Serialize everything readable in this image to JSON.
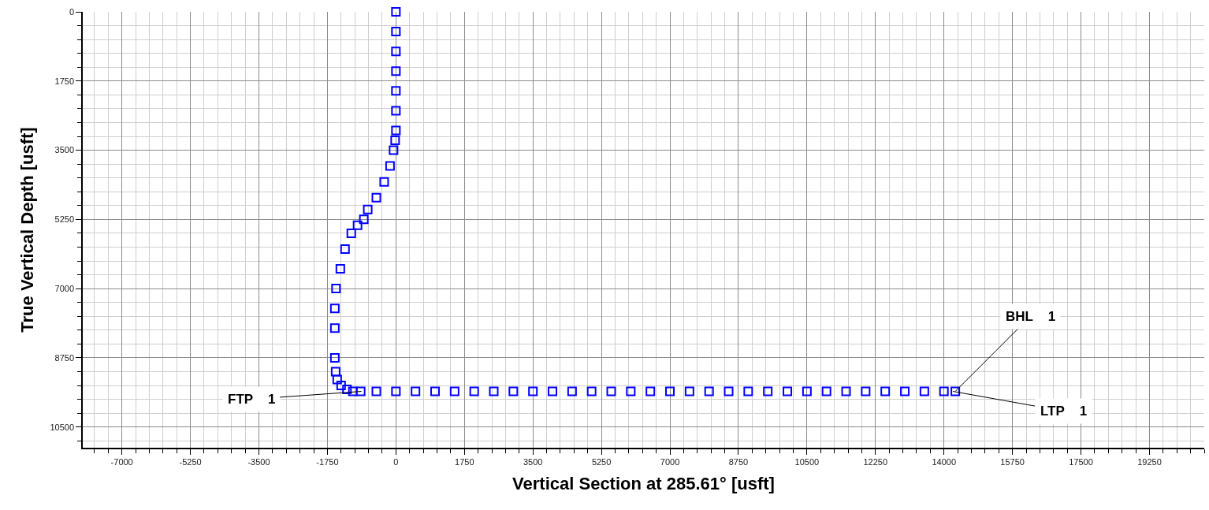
{
  "chart_data": {
    "type": "scatter",
    "xlabel": "Vertical Section at 285.61° [usft]",
    "ylabel": "True Vertical Depth [usft]",
    "x": [
      0,
      0,
      0,
      0,
      0,
      0,
      0,
      -20,
      -60,
      -150,
      -300,
      -500,
      -720,
      -820,
      -980,
      -1140,
      -1300,
      -1420,
      -1530,
      -1560,
      -1560,
      -1560,
      -1540,
      -1500,
      -1400,
      -1250,
      -1100,
      -900,
      -500,
      0,
      500,
      1000,
      1500,
      2000,
      2500,
      3000,
      3500,
      4000,
      4500,
      5000,
      5500,
      6000,
      6500,
      7000,
      7500,
      8000,
      8500,
      9000,
      9500,
      10000,
      10500,
      11000,
      11500,
      12000,
      12500,
      13000,
      13500,
      14000,
      14290
    ],
    "values": [
      0,
      500,
      1000,
      1500,
      2000,
      2500,
      3000,
      3250,
      3500,
      3900,
      4300,
      4700,
      5000,
      5250,
      5400,
      5600,
      6000,
      6500,
      7000,
      7500,
      8000,
      8750,
      9100,
      9300,
      9450,
      9550,
      9600,
      9600,
      9600,
      9600,
      9600,
      9600,
      9600,
      9600,
      9600,
      9600,
      9600,
      9600,
      9600,
      9600,
      9600,
      9600,
      9600,
      9600,
      9600,
      9600,
      9600,
      9600,
      9600,
      9600,
      9600,
      9600,
      9600,
      9600,
      9600,
      9600,
      9600,
      9600,
      9600
    ],
    "color": "#0000ff",
    "marker": "square",
    "xlim": [
      -8000,
      20650
    ],
    "ylim": [
      11025,
      0
    ],
    "xticks": [
      -7000,
      -5250,
      -3500,
      -1750,
      0,
      1750,
      3500,
      5250,
      7000,
      8750,
      10500,
      12250,
      14000,
      15750,
      17500,
      19250
    ],
    "yticks": [
      0,
      1750,
      3500,
      5250,
      7000,
      8750,
      10500
    ],
    "grid": true,
    "annotations": [
      {
        "text": "FTP    1",
        "x": -880,
        "y": 9600
      },
      {
        "text": "BHL    1",
        "x": 14290,
        "y": 9600
      },
      {
        "text": "LTP    1",
        "x": 14230,
        "y": 9600
      }
    ]
  }
}
